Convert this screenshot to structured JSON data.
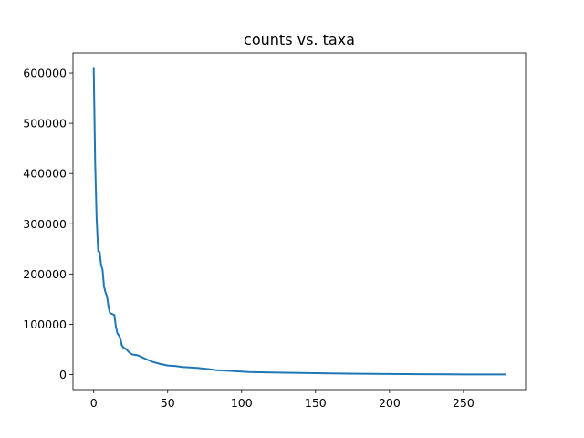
{
  "chart_data": {
    "type": "line",
    "title": "counts vs. taxa",
    "xlabel": "",
    "ylabel": "",
    "xlim": [
      -14,
      292
    ],
    "ylim": [
      -30000,
      640000
    ],
    "x_ticks": [
      0,
      50,
      100,
      150,
      200,
      250
    ],
    "y_ticks": [
      0,
      100000,
      200000,
      300000,
      400000,
      500000,
      600000
    ],
    "grid": false,
    "legend": "none",
    "line_color": "#1f77b4",
    "series": [
      {
        "x": [
          0,
          1,
          2,
          3,
          4,
          5,
          6,
          7,
          8,
          9,
          10,
          11,
          12,
          13,
          14,
          15,
          16,
          17,
          18,
          19,
          20,
          22,
          24,
          26,
          28,
          30,
          33,
          36,
          40,
          45,
          50,
          55,
          60,
          70,
          80,
          83,
          90,
          100,
          105,
          120,
          140,
          160,
          180,
          200,
          220,
          240,
          260,
          278
        ],
        "y": [
          610000,
          420000,
          310000,
          245000,
          244000,
          218000,
          208000,
          175000,
          163000,
          155000,
          135000,
          122000,
          121000,
          120000,
          118000,
          95000,
          82000,
          78000,
          72000,
          58000,
          54000,
          50000,
          44000,
          40000,
          39000,
          38000,
          34000,
          30000,
          25000,
          21000,
          18000,
          17000,
          15000,
          13000,
          10000,
          8500,
          7500,
          6000,
          5000,
          4000,
          3000,
          2200,
          1600,
          1100,
          700,
          400,
          200,
          100
        ]
      }
    ]
  }
}
